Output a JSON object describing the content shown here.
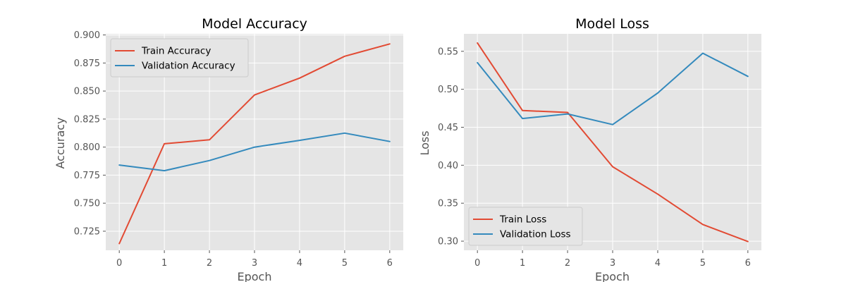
{
  "chart_data": [
    {
      "type": "line",
      "title": "Model Accuracy",
      "xlabel": "Epoch",
      "ylabel": "Accuracy",
      "x": [
        0,
        1,
        2,
        3,
        4,
        5,
        6
      ],
      "xlim": [
        -0.3,
        6.3
      ],
      "ylim": [
        0.708,
        0.901
      ],
      "xticks": [
        "0",
        "1",
        "2",
        "3",
        "4",
        "5",
        "6"
      ],
      "yticks": [
        "0.725",
        "0.750",
        "0.775",
        "0.800",
        "0.825",
        "0.850",
        "0.875",
        "0.900"
      ],
      "grid": true,
      "legend_position": "top-left",
      "series": [
        {
          "name": "Train Accuracy",
          "color": "#E24A33",
          "values": [
            0.714,
            0.803,
            0.8065,
            0.8465,
            0.8615,
            0.881,
            0.892
          ]
        },
        {
          "name": "Validation Accuracy",
          "color": "#348ABD",
          "values": [
            0.784,
            0.779,
            0.788,
            0.8,
            0.806,
            0.8125,
            0.805
          ]
        }
      ]
    },
    {
      "type": "line",
      "title": "Model Loss",
      "xlabel": "Epoch",
      "ylabel": "Loss",
      "x": [
        0,
        1,
        2,
        3,
        4,
        5,
        6
      ],
      "xlim": [
        -0.3,
        6.3
      ],
      "ylim": [
        0.288,
        0.573
      ],
      "xticks": [
        "0",
        "1",
        "2",
        "3",
        "4",
        "5",
        "6"
      ],
      "yticks": [
        "0.30",
        "0.35",
        "0.40",
        "0.45",
        "0.50",
        "0.55"
      ],
      "grid": true,
      "legend_position": "bottom-left",
      "series": [
        {
          "name": "Train Loss",
          "color": "#E24A33",
          "values": [
            0.561,
            0.472,
            0.4695,
            0.398,
            0.362,
            0.322,
            0.2995
          ]
        },
        {
          "name": "Validation Loss",
          "color": "#348ABD",
          "values": [
            0.535,
            0.4615,
            0.4675,
            0.4535,
            0.495,
            0.5475,
            0.517
          ]
        }
      ]
    }
  ]
}
